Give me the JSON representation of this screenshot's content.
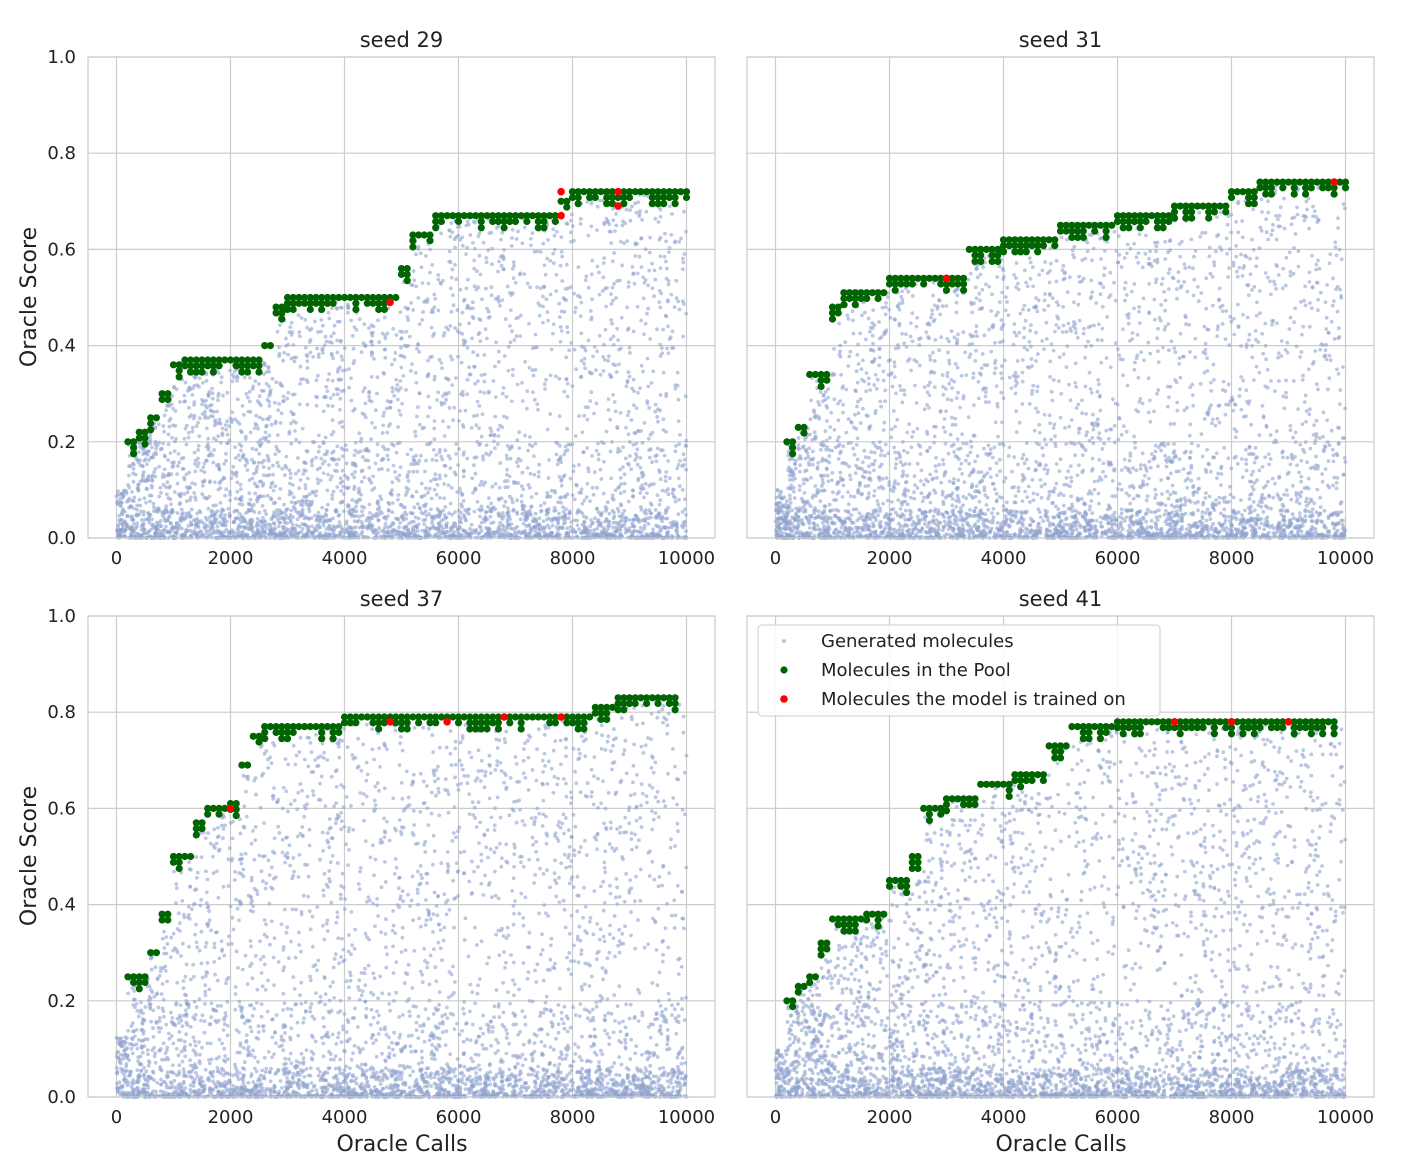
{
  "chart_data": {
    "type": "scatter",
    "layout": "2x2 grid",
    "shared_axes": true,
    "xlabel": "Oracle Calls",
    "ylabel": "Oracle Score",
    "xlim": [
      -500,
      10500
    ],
    "ylim": [
      0,
      1.0
    ],
    "xticks": [
      0,
      2000,
      4000,
      6000,
      8000,
      10000
    ],
    "yticks": [
      0.0,
      0.2,
      0.4,
      0.6,
      0.8,
      1.0
    ],
    "grid": true,
    "legend": {
      "placement": "upper-left of seed 41 panel",
      "entries": [
        {
          "label": "Generated molecules",
          "color": "#8fa3cf"
        },
        {
          "label": "Molecules in the Pool",
          "color": "#006400"
        },
        {
          "label": "Molecules the model is trained on",
          "color": "#ff0000"
        }
      ]
    },
    "series_colors": {
      "generated": "#8fa3cf",
      "pool": "#006400",
      "trained": "#ff0000"
    },
    "panels": [
      {
        "title": "seed 29",
        "x_max": 10000,
        "frontier": [
          [
            200,
            0.2
          ],
          [
            400,
            0.22
          ],
          [
            600,
            0.25
          ],
          [
            800,
            0.3
          ],
          [
            1000,
            0.36
          ],
          [
            1200,
            0.37
          ],
          [
            2400,
            0.37
          ],
          [
            2600,
            0.4
          ],
          [
            2800,
            0.48
          ],
          [
            3000,
            0.5
          ],
          [
            4800,
            0.5
          ],
          [
            5000,
            0.56
          ],
          [
            5200,
            0.63
          ],
          [
            5600,
            0.67
          ],
          [
            6000,
            0.67
          ],
          [
            7800,
            0.7
          ],
          [
            8000,
            0.72
          ],
          [
            10000,
            0.72
          ]
        ],
        "trained": [
          [
            4800,
            0.49
          ],
          [
            7800,
            0.72
          ],
          [
            7800,
            0.67
          ],
          [
            8800,
            0.72
          ],
          [
            8800,
            0.69
          ]
        ]
      },
      {
        "title": "seed 31",
        "x_max": 10000,
        "frontier": [
          [
            200,
            0.2
          ],
          [
            400,
            0.23
          ],
          [
            600,
            0.34
          ],
          [
            800,
            0.34
          ],
          [
            1000,
            0.48
          ],
          [
            1200,
            0.51
          ],
          [
            2000,
            0.54
          ],
          [
            3000,
            0.54
          ],
          [
            3400,
            0.6
          ],
          [
            4000,
            0.62
          ],
          [
            5000,
            0.65
          ],
          [
            6000,
            0.67
          ],
          [
            7000,
            0.69
          ],
          [
            8000,
            0.72
          ],
          [
            8500,
            0.74
          ],
          [
            10000,
            0.74
          ]
        ],
        "trained": [
          [
            3000,
            0.54
          ],
          [
            9800,
            0.74
          ]
        ]
      },
      {
        "title": "seed 37",
        "x_max": 10000,
        "frontier": [
          [
            200,
            0.25
          ],
          [
            400,
            0.25
          ],
          [
            600,
            0.3
          ],
          [
            800,
            0.38
          ],
          [
            1000,
            0.5
          ],
          [
            1200,
            0.5
          ],
          [
            1400,
            0.57
          ],
          [
            1600,
            0.6
          ],
          [
            2000,
            0.61
          ],
          [
            2200,
            0.69
          ],
          [
            2400,
            0.75
          ],
          [
            2600,
            0.77
          ],
          [
            4000,
            0.79
          ],
          [
            8000,
            0.79
          ],
          [
            8400,
            0.81
          ],
          [
            8800,
            0.83
          ],
          [
            9800,
            0.83
          ]
        ],
        "trained": [
          [
            2000,
            0.6
          ],
          [
            4800,
            0.78
          ],
          [
            5800,
            0.78
          ],
          [
            6800,
            0.79
          ],
          [
            7800,
            0.79
          ]
        ]
      },
      {
        "title": "seed 41",
        "x_max": 10000,
        "frontier": [
          [
            200,
            0.2
          ],
          [
            400,
            0.23
          ],
          [
            600,
            0.25
          ],
          [
            800,
            0.32
          ],
          [
            1000,
            0.37
          ],
          [
            1600,
            0.38
          ],
          [
            2000,
            0.45
          ],
          [
            2400,
            0.5
          ],
          [
            2600,
            0.6
          ],
          [
            3000,
            0.62
          ],
          [
            3600,
            0.65
          ],
          [
            4200,
            0.67
          ],
          [
            4800,
            0.73
          ],
          [
            5200,
            0.77
          ],
          [
            6000,
            0.78
          ],
          [
            7000,
            0.78
          ],
          [
            9800,
            0.78
          ]
        ],
        "trained": [
          [
            7000,
            0.78
          ],
          [
            8000,
            0.78
          ],
          [
            9000,
            0.78
          ]
        ]
      }
    ]
  }
}
